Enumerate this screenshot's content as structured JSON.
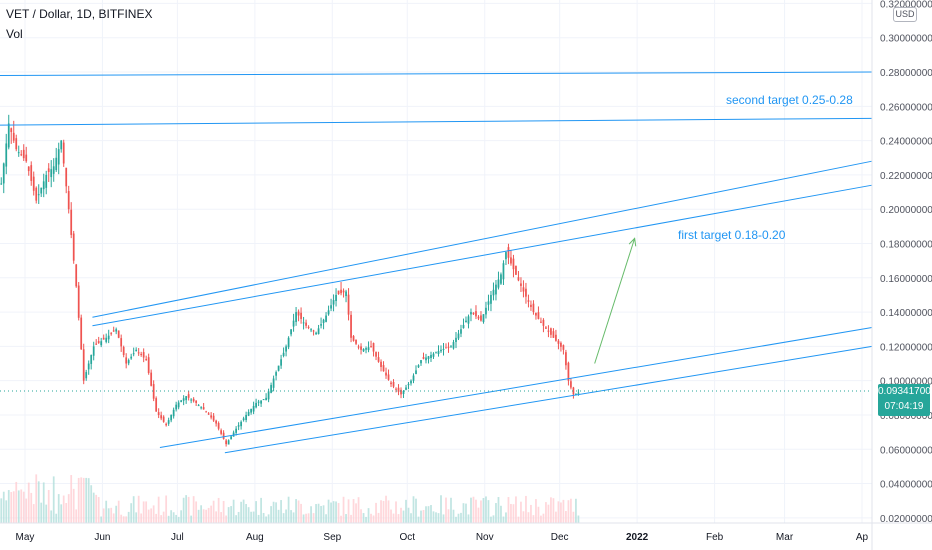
{
  "header": {
    "symbol_line": "VET / Dollar, 1D, BITFINEX",
    "indicator": "Vol"
  },
  "currency_badge": "USD",
  "last_price": {
    "value": "0.09341700",
    "countdown": "07:04:19"
  },
  "annotations": {
    "second_target": "second target 0.25-0.28",
    "first_target": "first target 0.18-0.20"
  },
  "colors": {
    "up": "#26a69a",
    "down": "#ef5350",
    "trendline": "#2196f3",
    "arrow": "#66bb6a",
    "text_annotation": "#2196f3"
  },
  "chart_data": {
    "type": "candlestick",
    "price_axis_ticks": [
      "0.02000000",
      "0.04000000",
      "0.06000000",
      "0.08000000",
      "0.10000000",
      "0.12000000",
      "0.14000000",
      "0.16000000",
      "0.18000000",
      "0.20000000",
      "0.22000000",
      "0.24000000",
      "0.26000000",
      "0.28000000",
      "0.30000000",
      "0.32000000"
    ],
    "ylim": [
      0.017,
      0.322
    ],
    "time_axis_ticks": [
      "May",
      "Jun",
      "Jul",
      "Aug",
      "Sep",
      "Oct",
      "Nov",
      "Dec",
      "2022",
      "Feb",
      "Mar",
      "Ap"
    ],
    "xlim": [
      "2021-04-21",
      "2022-04-05"
    ],
    "tick_dates": [
      "2021-05-01",
      "2021-06-01",
      "2021-07-01",
      "2021-08-01",
      "2021-09-01",
      "2021-10-01",
      "2021-11-01",
      "2021-12-01",
      "2022-01-01",
      "2022-02-01",
      "2022-03-01",
      "2022-04-01"
    ],
    "series_close": [
      {
        "date": "2021-04-21",
        "value": 0.215
      },
      {
        "date": "2021-04-24",
        "value": 0.25
      },
      {
        "date": "2021-04-27",
        "value": 0.235
      },
      {
        "date": "2021-05-01",
        "value": 0.228
      },
      {
        "date": "2021-05-05",
        "value": 0.205
      },
      {
        "date": "2021-05-09",
        "value": 0.22
      },
      {
        "date": "2021-05-12",
        "value": 0.225
      },
      {
        "date": "2021-05-15",
        "value": 0.24
      },
      {
        "date": "2021-05-18",
        "value": 0.2
      },
      {
        "date": "2021-05-21",
        "value": 0.155
      },
      {
        "date": "2021-05-24",
        "value": 0.1
      },
      {
        "date": "2021-05-28",
        "value": 0.12
      },
      {
        "date": "2021-06-02",
        "value": 0.125
      },
      {
        "date": "2021-06-06",
        "value": 0.13
      },
      {
        "date": "2021-06-10",
        "value": 0.11
      },
      {
        "date": "2021-06-14",
        "value": 0.118
      },
      {
        "date": "2021-06-18",
        "value": 0.112
      },
      {
        "date": "2021-06-22",
        "value": 0.082
      },
      {
        "date": "2021-06-26",
        "value": 0.074
      },
      {
        "date": "2021-06-30",
        "value": 0.086
      },
      {
        "date": "2021-07-04",
        "value": 0.091
      },
      {
        "date": "2021-07-08",
        "value": 0.087
      },
      {
        "date": "2021-07-12",
        "value": 0.082
      },
      {
        "date": "2021-07-16",
        "value": 0.075
      },
      {
        "date": "2021-07-20",
        "value": 0.063
      },
      {
        "date": "2021-07-24",
        "value": 0.072
      },
      {
        "date": "2021-07-28",
        "value": 0.08
      },
      {
        "date": "2021-08-01",
        "value": 0.087
      },
      {
        "date": "2021-08-05",
        "value": 0.09
      },
      {
        "date": "2021-08-09",
        "value": 0.105
      },
      {
        "date": "2021-08-13",
        "value": 0.12
      },
      {
        "date": "2021-08-17",
        "value": 0.14
      },
      {
        "date": "2021-08-21",
        "value": 0.132
      },
      {
        "date": "2021-08-25",
        "value": 0.128
      },
      {
        "date": "2021-08-29",
        "value": 0.138
      },
      {
        "date": "2021-09-02",
        "value": 0.15
      },
      {
        "date": "2021-09-06",
        "value": 0.152
      },
      {
        "date": "2021-09-08",
        "value": 0.125
      },
      {
        "date": "2021-09-12",
        "value": 0.118
      },
      {
        "date": "2021-09-16",
        "value": 0.12
      },
      {
        "date": "2021-09-20",
        "value": 0.108
      },
      {
        "date": "2021-09-24",
        "value": 0.098
      },
      {
        "date": "2021-09-28",
        "value": 0.092
      },
      {
        "date": "2021-10-02",
        "value": 0.1
      },
      {
        "date": "2021-10-06",
        "value": 0.112
      },
      {
        "date": "2021-10-10",
        "value": 0.115
      },
      {
        "date": "2021-10-14",
        "value": 0.118
      },
      {
        "date": "2021-10-18",
        "value": 0.12
      },
      {
        "date": "2021-10-22",
        "value": 0.13
      },
      {
        "date": "2021-10-26",
        "value": 0.14
      },
      {
        "date": "2021-10-30",
        "value": 0.135
      },
      {
        "date": "2021-11-03",
        "value": 0.15
      },
      {
        "date": "2021-11-07",
        "value": 0.162
      },
      {
        "date": "2021-11-09",
        "value": 0.175
      },
      {
        "date": "2021-11-12",
        "value": 0.165
      },
      {
        "date": "2021-11-16",
        "value": 0.152
      },
      {
        "date": "2021-11-20",
        "value": 0.14
      },
      {
        "date": "2021-11-24",
        "value": 0.132
      },
      {
        "date": "2021-11-28",
        "value": 0.125
      },
      {
        "date": "2021-12-02",
        "value": 0.118
      },
      {
        "date": "2021-12-04",
        "value": 0.1
      },
      {
        "date": "2021-12-06",
        "value": 0.092
      },
      {
        "date": "2021-12-08",
        "value": 0.093
      }
    ],
    "trendlines": [
      {
        "from": {
          "date": "2021-04-21",
          "price": 0.278
        },
        "to": {
          "date": "2022-04-05",
          "price": 0.28
        }
      },
      {
        "from": {
          "date": "2021-04-21",
          "price": 0.249
        },
        "to": {
          "date": "2022-04-05",
          "price": 0.253
        }
      },
      {
        "from": {
          "date": "2021-05-28",
          "price": 0.137
        },
        "to": {
          "date": "2022-04-05",
          "price": 0.228
        }
      },
      {
        "from": {
          "date": "2021-05-28",
          "price": 0.132
        },
        "to": {
          "date": "2022-04-05",
          "price": 0.214
        }
      },
      {
        "from": {
          "date": "2021-06-24",
          "price": 0.061
        },
        "to": {
          "date": "2022-04-05",
          "price": 0.131
        }
      },
      {
        "from": {
          "date": "2021-07-20",
          "price": 0.058
        },
        "to": {
          "date": "2022-04-05",
          "price": 0.12
        }
      }
    ],
    "arrow": {
      "from": {
        "date": "2021-12-15",
        "price": 0.11
      },
      "to": {
        "date": "2021-12-31",
        "price": 0.183
      }
    }
  }
}
